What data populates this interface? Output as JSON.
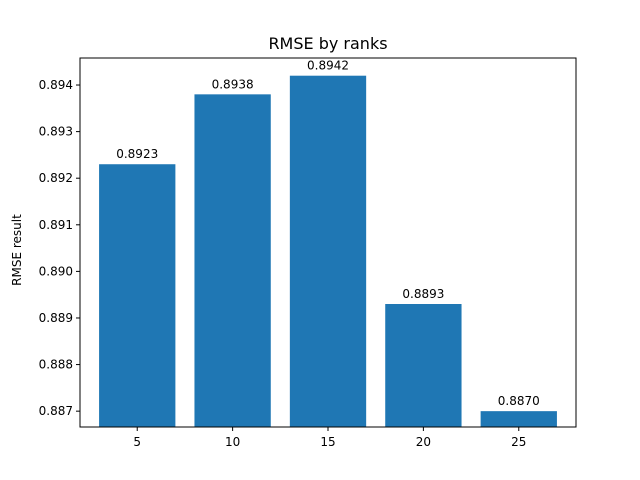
{
  "chart_data": {
    "type": "bar",
    "title": "RMSE by ranks",
    "xlabel": "",
    "ylabel": "RMSE result",
    "categories": [
      "5",
      "10",
      "15",
      "20",
      "25"
    ],
    "values": [
      0.8923,
      0.8938,
      0.8942,
      0.8893,
      0.887
    ],
    "data_labels": [
      "0.8923",
      "0.8938",
      "0.8942",
      "0.8893",
      "0.8870"
    ],
    "ylim": [
      0.88666,
      0.89458
    ],
    "yticks": [
      0.887,
      0.888,
      0.889,
      0.89,
      0.891,
      0.892,
      0.893,
      0.894
    ],
    "ytick_labels": [
      "0.887",
      "0.888",
      "0.889",
      "0.890",
      "0.891",
      "0.892",
      "0.893",
      "0.894"
    ],
    "bar_color": "#1f77b4",
    "grid": false,
    "legend": "none"
  }
}
